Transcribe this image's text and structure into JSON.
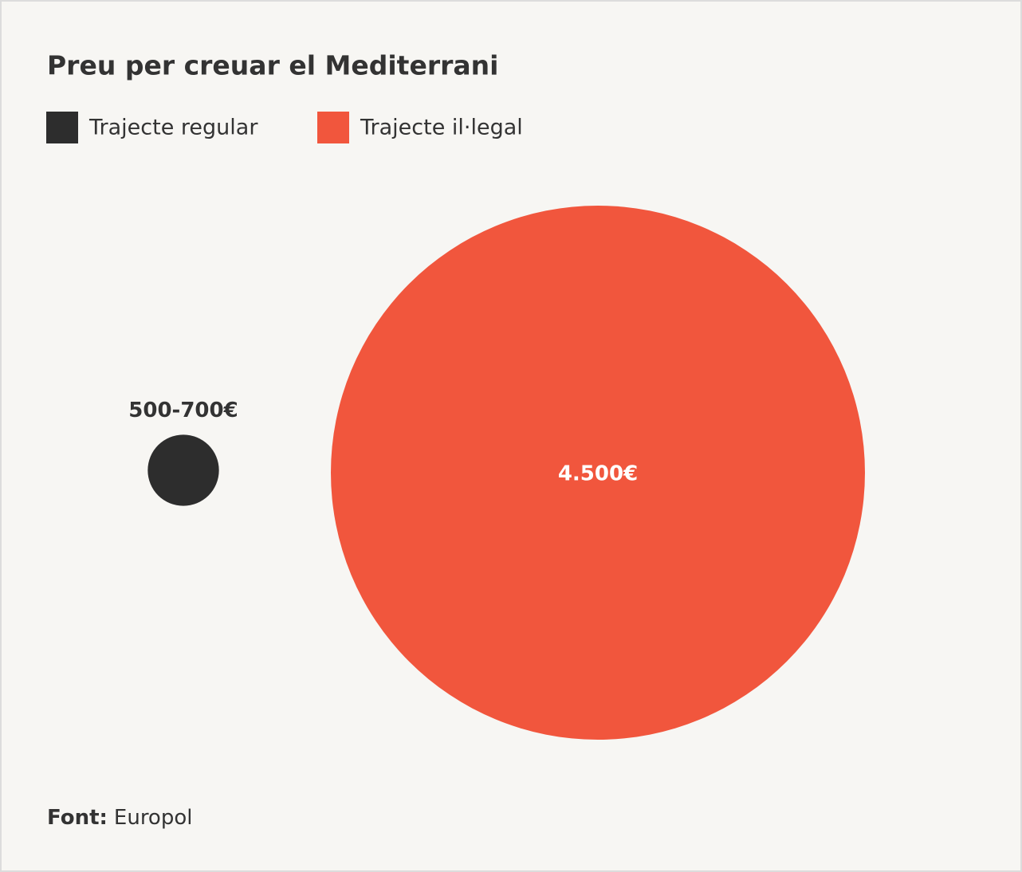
{
  "chart_data": {
    "type": "bubble",
    "title": "Preu per creuar el Mediterrani",
    "series": [
      {
        "name": "Trajecte regular",
        "color": "#2d2d2d",
        "values": [
          600
        ],
        "value_labels": [
          "500-700€"
        ]
      },
      {
        "name": "Trajecte il·legal",
        "color": "#f1563d",
        "values": [
          4500
        ],
        "value_labels": [
          "4.500€"
        ]
      }
    ],
    "source_label": "Font:",
    "source": "Europol"
  }
}
